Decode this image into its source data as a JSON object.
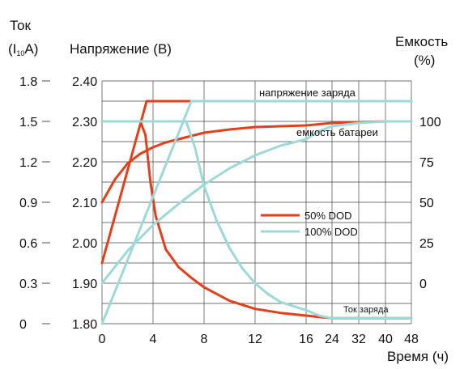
{
  "chart_data": {
    "type": "line",
    "labels": {
      "current_title": "Ток",
      "current_unit_prefix": "(I",
      "current_unit_sub": "10",
      "current_unit_suffix": "A)",
      "voltage_title": "Напряжение (В)",
      "capacity_title": "Емкость",
      "capacity_unit": "(%)",
      "xlabel": "Время (ч)"
    },
    "annotations": {
      "charge_voltage": "напряжение заряда",
      "battery_capacity": "емкость батареи",
      "charge_current": "Ток заряда"
    },
    "legend": {
      "position": "center-right",
      "items": [
        {
          "label": "50% DOD",
          "color": "#e2401c"
        },
        {
          "label": "100% DOD",
          "color": "#9dd9d6"
        }
      ]
    },
    "x_ticks": [
      "0",
      "4",
      "8",
      "12",
      "16",
      "24",
      "32",
      "40",
      "48"
    ],
    "y_current_ticks": [
      "0",
      "0.3",
      "0.6",
      "0.9",
      "1.2",
      "1.5",
      "1.8"
    ],
    "y_voltage_ticks": [
      "1.80",
      "1.90",
      "2.00",
      "2.10",
      "2.20",
      "2.30",
      "2.40"
    ],
    "y_capacity_ticks": [
      "0",
      "25",
      "50",
      "75",
      "100"
    ],
    "x_domain_hours": [
      0,
      48
    ],
    "x_scale_note_breakpoint": 16,
    "voltage_range": [
      1.8,
      2.4
    ],
    "current_range": [
      0,
      1.8
    ],
    "capacity_range": [
      0,
      100
    ],
    "series": [
      {
        "name": "50% DOD",
        "group": "voltage",
        "color": "#e2401c",
        "x": [
          0,
          3.5,
          48
        ],
        "y": [
          1.95,
          2.35,
          2.35
        ]
      },
      {
        "name": "50% DOD",
        "group": "current",
        "color": "#e2401c",
        "x": [
          0,
          3.0,
          3.4,
          3.8,
          4.2,
          5,
          6,
          7,
          8,
          10,
          12,
          14,
          16,
          20,
          24,
          32,
          40,
          48
        ],
        "y": [
          1.5,
          1.5,
          1.4,
          1.05,
          0.8,
          0.55,
          0.42,
          0.34,
          0.27,
          0.17,
          0.11,
          0.08,
          0.06,
          0.05,
          0.04,
          0.04,
          0.04,
          0.04
        ]
      },
      {
        "name": "50% DOD",
        "group": "capacity",
        "color": "#e2401c",
        "x": [
          0,
          1,
          2,
          3,
          4,
          5,
          6,
          8,
          10,
          12,
          16,
          24,
          32,
          40,
          48
        ],
        "y": [
          50,
          64,
          74,
          80,
          84,
          87,
          89,
          93,
          95,
          96.5,
          97.5,
          99,
          99.5,
          100,
          100
        ]
      },
      {
        "name": "100% DOD",
        "group": "voltage",
        "color": "#9dd9d6",
        "x": [
          0,
          7,
          48
        ],
        "y": [
          1.8,
          2.35,
          2.35
        ]
      },
      {
        "name": "100% DOD",
        "group": "current",
        "color": "#9dd9d6",
        "x": [
          0,
          6.6,
          7.3,
          8,
          9,
          10,
          11,
          12,
          13,
          14,
          16,
          20,
          24,
          32,
          40,
          48
        ],
        "y": [
          1.5,
          1.5,
          1.3,
          1.02,
          0.76,
          0.56,
          0.41,
          0.3,
          0.22,
          0.16,
          0.1,
          0.06,
          0.04,
          0.04,
          0.04,
          0.04
        ]
      },
      {
        "name": "100% DOD",
        "group": "capacity",
        "color": "#9dd9d6",
        "x": [
          0,
          2,
          4,
          6,
          8,
          10,
          12,
          14,
          16,
          20,
          24,
          32,
          40,
          48
        ],
        "y": [
          0,
          20,
          36,
          49,
          61,
          71,
          79,
          85,
          89,
          94,
          97,
          99,
          100,
          100
        ]
      }
    ],
    "grid": true
  }
}
